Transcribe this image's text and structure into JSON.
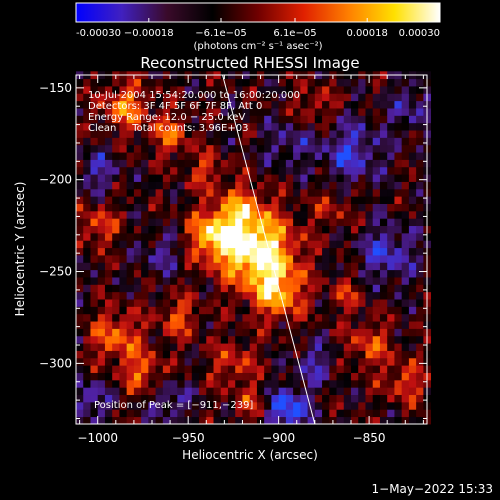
{
  "chart_data": {
    "type": "heatmap",
    "title": "Reconstructed RHESSI Image",
    "xlabel": "Heliocentric X (arcsec)",
    "ylabel": "Heliocentric Y (arcsec)",
    "xlim": [
      -1012,
      -818
    ],
    "ylim": [
      -333,
      -143
    ],
    "xticks": [
      -1000,
      -950,
      -900,
      -850
    ],
    "yticks": [
      -300,
      -250,
      -200,
      -150
    ],
    "xtick_labels": [
      "−1000",
      "−950",
      "−900",
      "−850"
    ],
    "ytick_labels": [
      "−300",
      "−250",
      "−200",
      "−150"
    ],
    "colorbar": {
      "range": [
        -0.0003,
        0.0003
      ],
      "tick_values": [
        -0.0003,
        -0.00018,
        -6.1e-05,
        6.1e-05,
        0.00018,
        0.0003
      ],
      "tick_labels": [
        "-0.00030",
        "−0.00018",
        "−6.1e−05",
        "6.1e−05",
        "0.00018",
        "0.00030"
      ],
      "unit_label": "(photons cm⁻² s⁻¹ asec⁻²)",
      "colors": [
        "#0000ff",
        "#4020c0",
        "#3a0a2a",
        "#000000",
        "#700000",
        "#e02000",
        "#ff8000",
        "#ffe000",
        "#ffffff"
      ]
    },
    "annotations": [
      "10-Jul-2004 15:54:20.000 to 16:00:20.000",
      "Detectors: 3F 4F 5F 6F 7F 8F, Att 0",
      "Energy Range: 12.0 − 25.0 keV",
      "Clean     Total counts: 3.96E+03"
    ],
    "peak_label": "Position of Peak = [−911,−239]",
    "peak": [
      -911,
      -239
    ],
    "limb_line": [
      [
        -931,
        -143
      ],
      [
        -880,
        -333
      ]
    ],
    "sources": [
      {
        "x": -911,
        "y": -239,
        "amp": 1.0,
        "sigma": 14
      },
      {
        "x": -935,
        "y": -230,
        "amp": 0.75,
        "sigma": 10
      },
      {
        "x": -900,
        "y": -262,
        "amp": 0.6,
        "sigma": 10
      },
      {
        "x": -920,
        "y": -215,
        "amp": 0.45,
        "sigma": 9
      },
      {
        "x": -985,
        "y": -160,
        "amp": 0.55,
        "sigma": 9
      },
      {
        "x": -960,
        "y": -175,
        "amp": 0.45,
        "sigma": 8
      },
      {
        "x": -990,
        "y": -285,
        "amp": 0.5,
        "sigma": 10
      },
      {
        "x": -975,
        "y": -305,
        "amp": 0.45,
        "sigma": 8
      },
      {
        "x": -1000,
        "y": -225,
        "amp": 0.4,
        "sigma": 8
      },
      {
        "x": -955,
        "y": -275,
        "amp": 0.4,
        "sigma": 8
      },
      {
        "x": -925,
        "y": -300,
        "amp": 0.35,
        "sigma": 9
      },
      {
        "x": -870,
        "y": -215,
        "amp": 0.25,
        "sigma": 8
      },
      {
        "x": -850,
        "y": -290,
        "amp": 0.4,
        "sigma": 9
      },
      {
        "x": -830,
        "y": -310,
        "amp": 0.4,
        "sigma": 8
      },
      {
        "x": -880,
        "y": -160,
        "amp": 0.3,
        "sigma": 8
      },
      {
        "x": -862,
        "y": -262,
        "amp": 0.3,
        "sigma": 7
      },
      {
        "x": -915,
        "y": -322,
        "amp": 0.3,
        "sigma": 7
      },
      {
        "x": -940,
        "y": -195,
        "amp": 0.35,
        "sigma": 7
      }
    ],
    "negatives": [
      {
        "x": -860,
        "y": -185,
        "amp": 0.45,
        "sigma": 12
      },
      {
        "x": -840,
        "y": -240,
        "amp": 0.45,
        "sigma": 11
      },
      {
        "x": -895,
        "y": -325,
        "amp": 0.7,
        "sigma": 8
      },
      {
        "x": -895,
        "y": -180,
        "amp": 0.3,
        "sigma": 9
      },
      {
        "x": -1005,
        "y": -320,
        "amp": 0.4,
        "sigma": 8
      },
      {
        "x": -960,
        "y": -320,
        "amp": 0.35,
        "sigma": 8
      },
      {
        "x": -1000,
        "y": -195,
        "amp": 0.35,
        "sigma": 8
      },
      {
        "x": -965,
        "y": -240,
        "amp": 0.3,
        "sigma": 8
      },
      {
        "x": -880,
        "y": -300,
        "amp": 0.35,
        "sigma": 8
      },
      {
        "x": -825,
        "y": -160,
        "amp": 0.3,
        "sigma": 10
      }
    ]
  },
  "footer": {
    "timestamp": "1−May−2022 15:33"
  }
}
